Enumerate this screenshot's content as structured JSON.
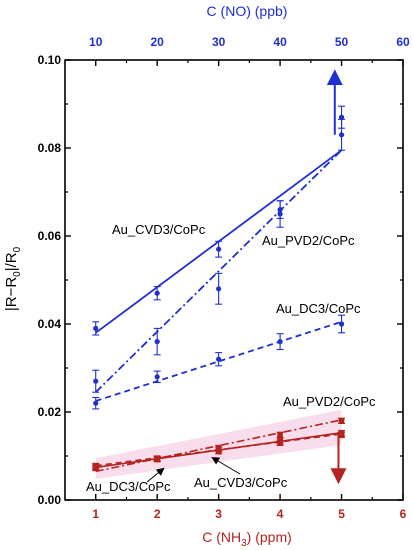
{
  "chart_data": {
    "type": "line",
    "x_top_label": "C (NO) (ppb)",
    "x_top_ticks": [
      "10",
      "20",
      "30",
      "40",
      "50",
      "60"
    ],
    "x_bottom_label_parts": [
      "C (NH",
      "3",
      ") (ppm)"
    ],
    "x_bottom_ticks": [
      "1",
      "2",
      "3",
      "4",
      "5",
      "6"
    ],
    "y_label_parts": [
      "|R−R",
      "0",
      "|/R",
      "0"
    ],
    "y_ticks": [
      "0.00",
      "0.02",
      "0.04",
      "0.06",
      "0.08",
      "0.10"
    ],
    "xlim_bottom": [
      0.5,
      6
    ],
    "xlim_top": [
      5,
      60
    ],
    "ylim": [
      0,
      0.1
    ],
    "colors": {
      "no": "#1f2fd1",
      "nh3": "#b4231f",
      "axis": "#000000",
      "shade": "#f6d3e6"
    },
    "series": [
      {
        "name": "Au_CVD3/CoPc",
        "axis": "top",
        "style": "solid",
        "x": [
          10,
          20,
          30,
          40,
          50
        ],
        "y": [
          0.039,
          0.047,
          0.057,
          0.066,
          0.083
        ],
        "err": [
          0.0015,
          0.0015,
          0.0018,
          0.002,
          0.0035
        ],
        "fit": [
          0.038,
          0.0795
        ]
      },
      {
        "name": "Au_PVD2/CoPc",
        "axis": "top",
        "style": "dashdot",
        "x": [
          10,
          20,
          30,
          40,
          50
        ],
        "y": [
          0.027,
          0.036,
          0.048,
          0.065,
          0.087
        ],
        "err": [
          0.0025,
          0.003,
          0.0035,
          0.003,
          0.0025
        ],
        "fit": [
          0.0245,
          0.0795
        ]
      },
      {
        "name": "Au_DC3/CoPc",
        "axis": "top",
        "style": "dashed",
        "x": [
          10,
          20,
          30,
          40,
          50
        ],
        "y": [
          0.022,
          0.028,
          0.032,
          0.036,
          0.04
        ],
        "err": [
          0.0013,
          0.0013,
          0.0015,
          0.0018,
          0.002
        ],
        "fit": [
          0.0225,
          0.0405
        ]
      },
      {
        "name": "Au_PVD2/CoPc",
        "axis": "bottom",
        "style": "dashdot",
        "x": [
          1,
          2,
          3,
          4,
          5
        ],
        "y": [
          0.0075,
          0.0095,
          0.0118,
          0.0148,
          0.018
        ],
        "err": [
          0.0005,
          0.0005,
          0.0006,
          0.0006,
          0.0006
        ],
        "fit": [
          0.0065,
          0.0182
        ]
      },
      {
        "name": "Au_CVD3/CoPc",
        "axis": "bottom",
        "style": "solid",
        "x": [
          1,
          2,
          3,
          4,
          5
        ],
        "y": [
          0.0072,
          0.0093,
          0.011,
          0.013,
          0.0152
        ],
        "err": [
          0.0005,
          0.0005,
          0.0005,
          0.0006,
          0.0006
        ],
        "fit": [
          0.0074,
          0.0153
        ]
      },
      {
        "name": "Au_DC3/CoPc",
        "axis": "bottom",
        "style": "dashed",
        "x": [
          1,
          2,
          3,
          4,
          5
        ],
        "y": [
          0.0078,
          0.0092,
          0.0115,
          0.0135,
          0.0148
        ],
        "err": [
          0.0005,
          0.0005,
          0.0005,
          0.0006,
          0.0006
        ],
        "fit": [
          0.0078,
          0.015
        ]
      }
    ],
    "annotations": [
      {
        "text": "Au_CVD3/CoPc"
      },
      {
        "text": "Au_PVD2/CoPc"
      },
      {
        "text": "Au_DC3/CoPc"
      },
      {
        "text": "Au_PVD2/CoPc"
      },
      {
        "text": "Au_DC3/CoPc"
      },
      {
        "text": "Au_CVD3/CoPc"
      }
    ],
    "grid": false,
    "legend": "none"
  }
}
